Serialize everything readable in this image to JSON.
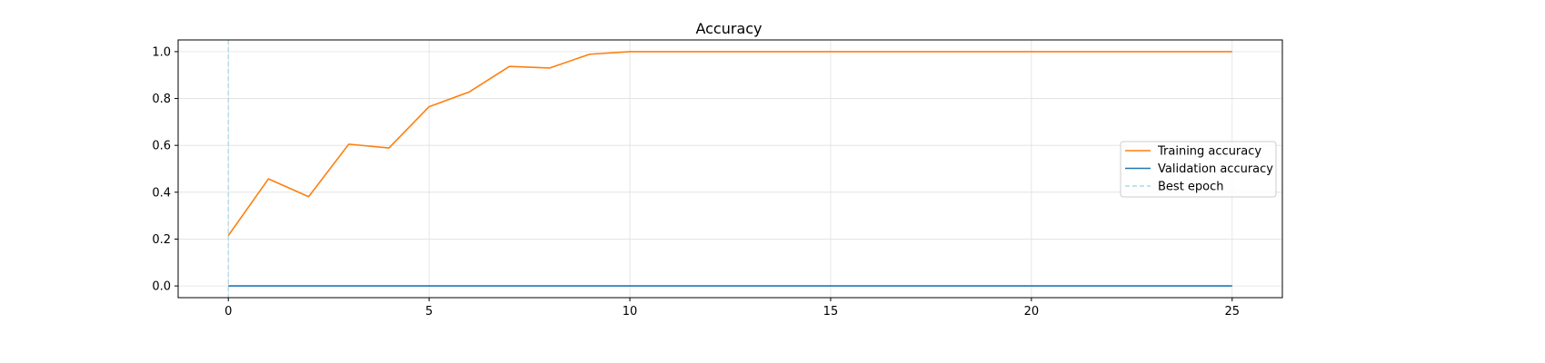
{
  "chart_data": {
    "type": "line",
    "title": "Accuracy",
    "xlabel": "",
    "ylabel": "",
    "xlim": [
      -1.25,
      26.25
    ],
    "ylim": [
      -0.05,
      1.05
    ],
    "xticks": [
      0,
      5,
      10,
      15,
      20,
      25
    ],
    "yticks": [
      0.0,
      0.2,
      0.4,
      0.6,
      0.8,
      1.0
    ],
    "xtick_labels": [
      "0",
      "5",
      "10",
      "15",
      "20",
      "25"
    ],
    "ytick_labels": [
      "0.0",
      "0.2",
      "0.4",
      "0.6",
      "0.8",
      "1.0"
    ],
    "grid": true,
    "legend_position": "center-right",
    "x": [
      0,
      1,
      2,
      3,
      4,
      5,
      6,
      7,
      8,
      9,
      10,
      11,
      12,
      13,
      14,
      15,
      16,
      17,
      18,
      19,
      20,
      21,
      22,
      23,
      24,
      25
    ],
    "series": [
      {
        "name": "Training accuracy",
        "color": "#ff7f0e",
        "values": [
          0.215,
          0.457,
          0.381,
          0.605,
          0.589,
          0.765,
          0.828,
          0.937,
          0.93,
          0.989,
          1.0,
          1.0,
          1.0,
          1.0,
          1.0,
          1.0,
          1.0,
          1.0,
          1.0,
          1.0,
          1.0,
          1.0,
          1.0,
          1.0,
          1.0,
          1.0
        ]
      },
      {
        "name": "Validation accuracy",
        "color": "#1f77b4",
        "values": [
          0.0,
          0.0,
          0.0,
          0.0,
          0.0,
          0.0,
          0.0,
          0.0,
          0.0,
          0.0,
          0.0,
          0.0,
          0.0,
          0.0,
          0.0,
          0.0,
          0.0,
          0.0,
          0.0,
          0.0,
          0.0,
          0.0,
          0.0,
          0.0,
          0.0,
          0.0
        ]
      }
    ],
    "annotations": [
      {
        "name": "Best epoch",
        "type": "vline",
        "x": 0,
        "color": "#add8e6",
        "style": "dashed"
      }
    ]
  }
}
